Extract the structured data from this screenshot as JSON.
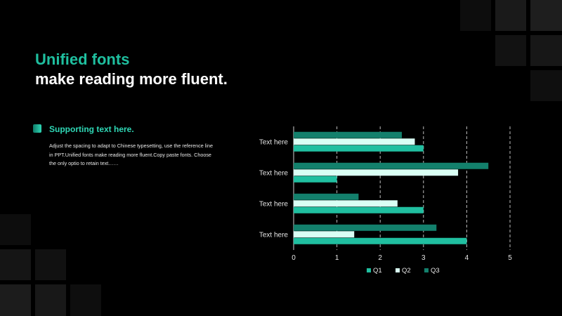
{
  "slide": {
    "title_line1": "Unified fonts",
    "title_line2": "make reading more fluent.",
    "support_heading": "Supporting text here.",
    "support_body": "Adjust the spacing to adapt to Chinese typesetting, use the reference line in PPT.Unified fonts make reading more fluent.Copy paste fonts. Choose the only optio to retain text……"
  },
  "colors": {
    "accent": "#1fbf9f",
    "q1": "#20bfa0",
    "q2": "#d9fff4",
    "q3": "#13806c",
    "background": "#000000"
  },
  "chart_data": {
    "type": "bar",
    "orientation": "horizontal",
    "categories": [
      "Text here",
      "Text here",
      "Text here",
      "Text here"
    ],
    "series": [
      {
        "name": "Q1",
        "values": [
          4.0,
          3.0,
          1.0,
          3.0
        ]
      },
      {
        "name": "Q2",
        "values": [
          1.4,
          2.4,
          3.8,
          2.8
        ]
      },
      {
        "name": "Q3",
        "values": [
          3.3,
          1.5,
          4.5,
          2.5
        ]
      }
    ],
    "xlim": [
      0,
      5
    ],
    "xticks": [
      "0",
      "1",
      "2",
      "3",
      "4",
      "5"
    ],
    "grid": "vertical-dashed",
    "legend": "bottom"
  }
}
